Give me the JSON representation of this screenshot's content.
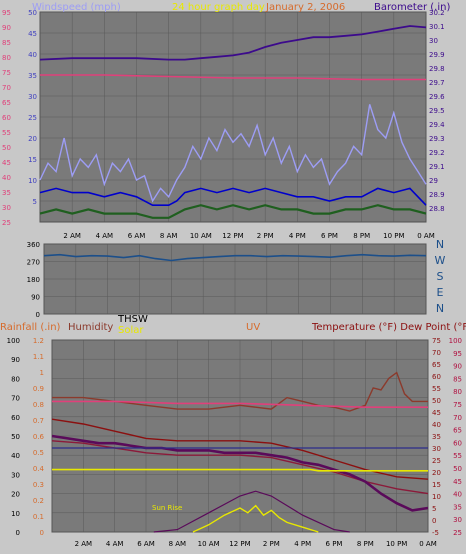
{
  "header": {
    "wind_label": "Windspeed (mph)",
    "center_label": "24 hour graph day",
    "date_label": "January 2, 2006",
    "baro_label": "Barometer (.in)"
  },
  "colors": {
    "background": "#c8c8c8",
    "plot": "#7a7a7a",
    "grid": "#5a5a5a",
    "wind_speed": "#9d9df5",
    "wind_avg": "#0000cc",
    "wind_low": "#1f5f1f",
    "barometer": "#3c0a8c",
    "magenta": "#e0407a",
    "direction": "#1c4f8a",
    "rain_axis": "#d66b2c",
    "humidity": "#8b3a2c",
    "thsw": "#5a0a5a",
    "solar": "#e8e800",
    "uv": "#d66b2c",
    "temperature": "#8b1010",
    "dew_point": "#8b1a3a",
    "right_axis": "#b01040",
    "ink": "#000000"
  },
  "chart_data": [
    {
      "type": "line",
      "name": "wind-barometer",
      "title": "24 hour graph day",
      "xlabel": "",
      "ylabel": "Windspeed (mph)",
      "y2label": "Barometer (.in)",
      "x_ticks": [
        "2 AM",
        "4 AM",
        "6 AM",
        "8 AM",
        "10 AM",
        "12 PM",
        "2 PM",
        "4 PM",
        "6 PM",
        "8 PM",
        "10 PM",
        "0 AM"
      ],
      "xlim": [
        0,
        24
      ],
      "ylim_left": [
        0,
        50
      ],
      "left_ticks": [
        5,
        10,
        15,
        20,
        25,
        30,
        35,
        40,
        45,
        50
      ],
      "ylim_left_outer": [
        25,
        95
      ],
      "left_outer_ticks": [
        25,
        30,
        35,
        40,
        45,
        50,
        55,
        60,
        65,
        70,
        75,
        80,
        85,
        90,
        95
      ],
      "ylim_right": [
        28.7,
        30.2
      ],
      "right_ticks": [
        "28.8",
        "28.9",
        "29",
        "29.1",
        "29.2",
        "29.3",
        "29.4",
        "29.5",
        "29.6",
        "29.7",
        "29.8",
        "29.9",
        "30",
        "30.1",
        "30.2"
      ],
      "grid": true,
      "series": [
        {
          "key": "barometer",
          "axis": "right",
          "x": [
            0,
            2,
            4,
            6,
            8,
            9,
            10,
            11,
            12,
            13,
            14,
            15,
            16,
            17,
            18,
            19,
            20,
            21,
            22,
            23,
            24
          ],
          "y": [
            29.86,
            29.87,
            29.87,
            29.87,
            29.86,
            29.86,
            29.87,
            29.88,
            29.89,
            29.91,
            29.95,
            29.98,
            30.0,
            30.02,
            30.02,
            30.03,
            30.04,
            30.06,
            30.08,
            30.1,
            30.09
          ]
        },
        {
          "key": "magenta",
          "axis": "left_outer",
          "x": [
            0,
            4,
            8,
            12,
            16,
            20,
            24
          ],
          "y": [
            74,
            74,
            73.5,
            73,
            73,
            72.5,
            72.5
          ]
        },
        {
          "key": "wind_speed",
          "axis": "left",
          "x": [
            0,
            0.5,
            1,
            1.5,
            2,
            2.5,
            3,
            3.5,
            4,
            4.5,
            5,
            5.5,
            6,
            6.5,
            7,
            7.5,
            8,
            8.5,
            9,
            9.5,
            10,
            10.5,
            11,
            11.5,
            12,
            12.5,
            13,
            13.5,
            14,
            14.5,
            15,
            15.5,
            16,
            16.5,
            17,
            17.5,
            18,
            18.5,
            19,
            19.5,
            20,
            20.5,
            21,
            21.5,
            22,
            22.5,
            23,
            23.5,
            24
          ],
          "y": [
            10,
            14,
            12,
            20,
            11,
            15,
            13,
            16,
            9,
            14,
            12,
            15,
            10,
            11,
            5,
            8,
            6,
            10,
            13,
            18,
            15,
            20,
            17,
            22,
            19,
            21,
            18,
            23,
            16,
            20,
            14,
            18,
            12,
            16,
            13,
            15,
            9,
            12,
            14,
            18,
            16,
            28,
            22,
            20,
            26,
            19,
            15,
            12,
            9
          ]
        },
        {
          "key": "wind_avg",
          "axis": "left",
          "x": [
            0,
            1,
            2,
            3,
            4,
            5,
            6,
            7,
            8,
            8.5,
            9,
            10,
            11,
            12,
            13,
            14,
            15,
            16,
            17,
            18,
            19,
            20,
            20.5,
            21,
            22,
            23,
            24
          ],
          "y": [
            7,
            8,
            7,
            7,
            6,
            7,
            6,
            4,
            4,
            5,
            7,
            8,
            7,
            8,
            7,
            8,
            7,
            6,
            6,
            5,
            6,
            6,
            7,
            8,
            7,
            8,
            4
          ]
        },
        {
          "key": "wind_low",
          "axis": "left",
          "x": [
            0,
            1,
            2,
            3,
            4,
            5,
            6,
            7,
            8,
            9,
            10,
            11,
            12,
            13,
            14,
            15,
            16,
            17,
            18,
            19,
            20,
            21,
            22,
            23,
            24
          ],
          "y": [
            2,
            3,
            2,
            3,
            2,
            2,
            2,
            1,
            1,
            3,
            4,
            3,
            4,
            3,
            4,
            3,
            3,
            2,
            2,
            3,
            3,
            4,
            3,
            3,
            2
          ]
        }
      ]
    },
    {
      "type": "line",
      "name": "wind-direction",
      "xlabel": "",
      "ylabel": "",
      "ylim": [
        0,
        360
      ],
      "y_ticks": [
        0,
        90,
        180,
        270,
        360
      ],
      "direction_labels": [
        "N",
        "W",
        "S",
        "E",
        "N"
      ],
      "series": [
        {
          "key": "direction",
          "x": [
            0,
            1,
            2,
            3,
            4,
            5,
            6,
            7,
            8,
            9,
            10,
            11,
            12,
            13,
            14,
            15,
            16,
            17,
            18,
            19,
            20,
            21,
            22,
            23,
            24
          ],
          "y": [
            300,
            305,
            295,
            300,
            298,
            290,
            300,
            285,
            275,
            285,
            290,
            295,
            300,
            300,
            295,
            300,
            298,
            295,
            292,
            300,
            305,
            300,
            298,
            302,
            300
          ]
        }
      ]
    },
    {
      "type": "line",
      "name": "weather-multi",
      "labels": {
        "rainfall": "Rainfall (.in)",
        "humidity": "Humidity",
        "thsw": "THSW",
        "solar": "Solar",
        "uv": "UV",
        "temperature": "Temperature (°F) Dew Point (°F)",
        "sun_rise": "Sun Rise"
      },
      "x_ticks": [
        "2 AM",
        "4 AM",
        "6 AM",
        "8 AM",
        "10 AM",
        "12 PM",
        "2 PM",
        "4 PM",
        "6 PM",
        "8 PM",
        "10 PM",
        "0 AM"
      ],
      "xlim": [
        0,
        24
      ],
      "humidity_ticks": [
        0,
        10,
        20,
        30,
        40,
        50,
        60,
        70,
        80,
        90,
        100
      ],
      "rain_ticks": [
        "0",
        "0.1",
        "0.2",
        "0.3",
        "0.4",
        "0.5",
        "0.6",
        "0.7",
        "0.8",
        "0.9",
        "1",
        "1.1",
        "1.2"
      ],
      "temp_ticks": [
        -5,
        0,
        5,
        10,
        15,
        20,
        25,
        30,
        35,
        40,
        45,
        50,
        55,
        60,
        65,
        70,
        75
      ],
      "dew_ticks": [
        25,
        30,
        35,
        40,
        45,
        50,
        55,
        60,
        65,
        70,
        75,
        80,
        85,
        90,
        95,
        100
      ],
      "series": [
        {
          "key": "humidity",
          "axis": "humidity",
          "x": [
            0,
            2,
            4,
            6,
            8,
            10,
            11,
            12,
            13,
            14,
            15,
            16,
            17,
            18,
            19,
            20,
            20.5,
            21,
            21.5,
            22,
            22.5,
            23,
            24
          ],
          "y": [
            70,
            70,
            68,
            66,
            64,
            64,
            65,
            66,
            65,
            64,
            70,
            68,
            66,
            65,
            63,
            66,
            75,
            74,
            80,
            83,
            72,
            68,
            68
          ]
        },
        {
          "key": "magenta",
          "axis": "humidity",
          "x": [
            0,
            4,
            8,
            12,
            16,
            20,
            24
          ],
          "y": [
            68,
            68,
            67,
            67,
            66,
            65,
            65
          ]
        },
        {
          "key": "temperature",
          "axis": "temp",
          "x": [
            0,
            2,
            4,
            6,
            8,
            10,
            12,
            14,
            16,
            18,
            20,
            22,
            24
          ],
          "y": [
            42,
            40,
            37,
            34,
            33,
            33,
            33,
            32,
            29,
            25,
            21,
            18,
            17
          ]
        },
        {
          "key": "dew_point",
          "axis": "temp",
          "x": [
            0,
            2,
            4,
            6,
            8,
            10,
            12,
            14,
            16,
            18,
            20,
            22,
            24
          ],
          "y": [
            33,
            32,
            30,
            28,
            27,
            27,
            27,
            26,
            23,
            20,
            16,
            13,
            11
          ]
        },
        {
          "key": "thsw",
          "axis": "temp",
          "x": [
            0,
            1,
            2,
            3,
            4,
            5,
            6,
            7,
            8,
            9,
            10,
            11,
            12,
            13,
            14,
            15,
            16,
            17,
            18,
            19,
            20,
            21,
            22,
            23,
            24
          ],
          "y": [
            35,
            34,
            33,
            32,
            32,
            31,
            30,
            30,
            29,
            29,
            29,
            28,
            28,
            28,
            27,
            26,
            24,
            23,
            21,
            19,
            16,
            11,
            7,
            4,
            5
          ]
        },
        {
          "key": "blue_flat",
          "axis": "temp",
          "x": [
            0,
            24
          ],
          "y": [
            30,
            30
          ]
        },
        {
          "key": "solar",
          "axis": "temp",
          "x": [
            0,
            8,
            9,
            10,
            11,
            12,
            13,
            14,
            15,
            16,
            16.5,
            17,
            24
          ],
          "y": [
            21,
            21,
            21,
            21,
            21,
            21,
            21,
            21,
            21,
            21,
            21,
            20.5,
            20.5
          ]
        },
        {
          "key": "uv_curve",
          "axis": "temp",
          "x": [
            6.5,
            8,
            10,
            12,
            13,
            14,
            16,
            18,
            19
          ],
          "y": [
            -5,
            -4,
            3,
            10,
            12,
            10,
            2,
            -4,
            -5
          ]
        },
        {
          "key": "solar_spiky",
          "axis": "temp",
          "x": [
            9,
            10,
            11,
            12,
            12.5,
            13,
            13.5,
            14,
            14.5,
            15,
            16,
            17
          ],
          "y": [
            -5,
            -2,
            2,
            5,
            3,
            6,
            2,
            4,
            1,
            -1,
            -3,
            -5
          ]
        }
      ]
    }
  ]
}
